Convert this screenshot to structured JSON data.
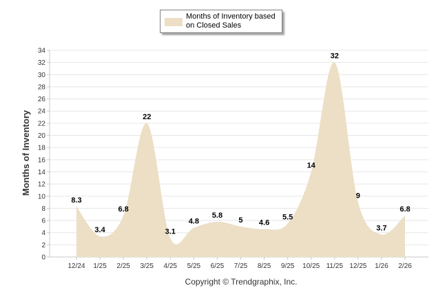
{
  "chart_data": {
    "type": "area",
    "categories": [
      "12/24",
      "1/25",
      "2/25",
      "3/25",
      "4/25",
      "5/25",
      "6/25",
      "7/25",
      "8/25",
      "9/25",
      "10/25",
      "11/25",
      "12/25",
      "1/26",
      "2/26"
    ],
    "series": [
      {
        "name": "Months of Inventory based on Closed Sales",
        "values": [
          8.3,
          3.4,
          6.8,
          22,
          3.1,
          4.8,
          5.8,
          5,
          4.6,
          5.5,
          14,
          32,
          9,
          3.7,
          6.8
        ]
      }
    ],
    "data_labels": [
      "8.3",
      "3.4",
      "6.8",
      "22",
      "3.1",
      "4.8",
      "5.8",
      "5",
      "4.6",
      "5.5",
      "14",
      "32",
      "9",
      "3.7",
      "6.8"
    ],
    "ylabel": "Months of Inventory",
    "ylim": [
      0,
      34
    ],
    "yticks": [
      "0",
      "2",
      "4",
      "6",
      "8",
      "10",
      "12",
      "14",
      "16",
      "18",
      "20",
      "22",
      "24",
      "26",
      "28",
      "30",
      "32",
      "34"
    ],
    "grid": true,
    "legend_position": "top-center",
    "fill_color": "#ecdfc6"
  },
  "legend": {
    "label_line1": "Months of Inventory based",
    "label_line2": "on Closed Sales"
  },
  "footer": {
    "copyright": "Copyright © Trendgraphix, Inc."
  }
}
